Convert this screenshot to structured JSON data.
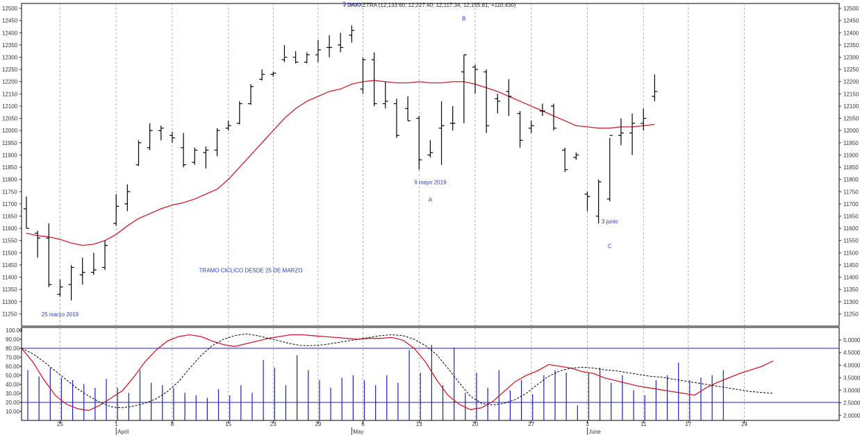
{
  "title": "I DAXXETRA (12,133.60, 12,227.40, 12,117.34, 12,155.81, +110.430)",
  "colors": {
    "bars": "#000000",
    "ma": "#d11a2a",
    "osc_fast": "#d11a2a",
    "osc_slow": "#000000",
    "volume": "#1d1db8",
    "ref_lines": "#1d1db8",
    "annotation": "#2a39c8",
    "grid": "#9a9a9a"
  },
  "chart_data": [
    {
      "type": "ohlc",
      "series_name": "I DAXXETRA",
      "ylim": [
        11200,
        12520
      ],
      "yticks": [
        12500,
        12450,
        12400,
        12350,
        12300,
        12250,
        12200,
        12150,
        12100,
        12050,
        12000,
        11950,
        11900,
        11850,
        11800,
        11750,
        11700,
        11650,
        11600,
        11550,
        11500,
        11450,
        11400,
        11350,
        11300,
        11250
      ],
      "x_tick_labels": [
        {
          "i": 3,
          "label": "25"
        },
        {
          "i": 8,
          "label": "1"
        },
        {
          "i": 13,
          "label": "8"
        },
        {
          "i": 18,
          "label": "15"
        },
        {
          "i": 22,
          "label": "23"
        },
        {
          "i": 26,
          "label": "29"
        },
        {
          "i": 30,
          "label": "6"
        },
        {
          "i": 35,
          "label": "13"
        },
        {
          "i": 40,
          "label": "20"
        },
        {
          "i": 45,
          "label": "27"
        },
        {
          "i": 50,
          "label": "3"
        },
        {
          "i": 55,
          "label": "11"
        },
        {
          "i": 59,
          "label": "17"
        },
        {
          "i": 64,
          "label": "24"
        }
      ],
      "month_labels": [
        {
          "i": 8,
          "label": "April"
        },
        {
          "i": 29,
          "label": "May"
        },
        {
          "i": 50,
          "label": "June"
        }
      ],
      "bars": [
        {
          "o": 11680,
          "h": 11730,
          "l": 11600,
          "c": 11600
        },
        {
          "o": 11580,
          "h": 11590,
          "l": 11480,
          "c": 11560
        },
        {
          "o": 11560,
          "h": 11620,
          "l": 11360,
          "c": 11370
        },
        {
          "o": 11330,
          "h": 11390,
          "l": 11320,
          "c": 11360
        },
        {
          "o": 11370,
          "h": 11450,
          "l": 11305,
          "c": 11440
        },
        {
          "o": 11410,
          "h": 11480,
          "l": 11370,
          "c": 11420
        },
        {
          "o": 11420,
          "h": 11500,
          "l": 11410,
          "c": 11430
        },
        {
          "o": 11440,
          "h": 11550,
          "l": 11430,
          "c": 11530
        },
        {
          "o": 11620,
          "h": 11740,
          "l": 11610,
          "c": 11690
        },
        {
          "o": 11700,
          "h": 11780,
          "l": 11670,
          "c": 11750
        },
        {
          "o": 11860,
          "h": 11960,
          "l": 11855,
          "c": 11950
        },
        {
          "o": 11930,
          "h": 12030,
          "l": 11920,
          "c": 12000
        },
        {
          "o": 12000,
          "h": 12020,
          "l": 11960,
          "c": 12010
        },
        {
          "o": 11980,
          "h": 11995,
          "l": 11950,
          "c": 11970
        },
        {
          "o": 11930,
          "h": 11990,
          "l": 11850,
          "c": 11860
        },
        {
          "o": 11870,
          "h": 11930,
          "l": 11860,
          "c": 11920
        },
        {
          "o": 11910,
          "h": 11935,
          "l": 11845,
          "c": 11920
        },
        {
          "o": 11920,
          "h": 12010,
          "l": 11895,
          "c": 12000
        },
        {
          "o": 12010,
          "h": 12040,
          "l": 12000,
          "c": 12020
        },
        {
          "o": 12030,
          "h": 12120,
          "l": 12025,
          "c": 12110
        },
        {
          "o": 12110,
          "h": 12190,
          "l": 12105,
          "c": 12180
        },
        {
          "o": 12210,
          "h": 12250,
          "l": 12205,
          "c": 12230
        },
        {
          "o": 12230,
          "h": 12240,
          "l": 12220,
          "c": 12235
        },
        {
          "o": 12290,
          "h": 12350,
          "l": 12280,
          "c": 12300
        },
        {
          "o": 12300,
          "h": 12325,
          "l": 12275,
          "c": 12280
        },
        {
          "o": 12280,
          "h": 12320,
          "l": 12275,
          "c": 12310
        },
        {
          "o": 12310,
          "h": 12370,
          "l": 12280,
          "c": 12330
        },
        {
          "o": 12340,
          "h": 12390,
          "l": 12300,
          "c": 12340
        },
        {
          "o": 12350,
          "h": 12400,
          "l": 12320,
          "c": 12340
        },
        {
          "o": 12390,
          "h": 12430,
          "l": 12360,
          "c": 12410
        },
        {
          "o": 12170,
          "h": 12300,
          "l": 12150,
          "c": 12290
        },
        {
          "o": 12290,
          "h": 12320,
          "l": 12100,
          "c": 12110
        },
        {
          "o": 12110,
          "h": 12200,
          "l": 12090,
          "c": 12120
        },
        {
          "o": 12110,
          "h": 12130,
          "l": 11970,
          "c": 11980
        },
        {
          "o": 12090,
          "h": 12140,
          "l": 12040,
          "c": 12040
        },
        {
          "o": 12050,
          "h": 12060,
          "l": 11840,
          "c": 11880
        },
        {
          "o": 11900,
          "h": 11960,
          "l": 11890,
          "c": 11910
        },
        {
          "o": 12010,
          "h": 12120,
          "l": 11860,
          "c": 12020
        },
        {
          "o": 12030,
          "h": 12100,
          "l": 12000,
          "c": 12030
        },
        {
          "o": 12240,
          "h": 12310,
          "l": 12030,
          "c": 12310
        },
        {
          "o": 12260,
          "h": 12270,
          "l": 12150,
          "c": 12250
        },
        {
          "o": 12240,
          "h": 12250,
          "l": 11990,
          "c": 12020
        },
        {
          "o": 12130,
          "h": 12150,
          "l": 12070,
          "c": 12120
        },
        {
          "o": 12160,
          "h": 12210,
          "l": 12060,
          "c": 12140
        },
        {
          "o": 12070,
          "h": 12080,
          "l": 11930,
          "c": 11960
        },
        {
          "o": 12010,
          "h": 12040,
          "l": 11990,
          "c": 12020
        },
        {
          "o": 12080,
          "h": 12110,
          "l": 12060,
          "c": 12080
        },
        {
          "o": 12100,
          "h": 12110,
          "l": 12000,
          "c": 12010
        },
        {
          "o": 11920,
          "h": 11930,
          "l": 11830,
          "c": 11840
        },
        {
          "o": 11890,
          "h": 11910,
          "l": 11880,
          "c": 11900
        },
        {
          "o": 11740,
          "h": 11750,
          "l": 11670,
          "c": 11730
        },
        {
          "o": 11650,
          "h": 11800,
          "l": 11620,
          "c": 11790
        },
        {
          "o": 11720,
          "h": 11970,
          "l": 11710,
          "c": 11980
        },
        {
          "o": 11980,
          "h": 12050,
          "l": 11940,
          "c": 11990
        },
        {
          "o": 11990,
          "h": 12070,
          "l": 11900,
          "c": 12030
        },
        {
          "o": 12030,
          "h": 12090,
          "l": 12000,
          "c": 12050
        },
        {
          "o": 12140,
          "h": 12230,
          "l": 12120,
          "c": 12160
        }
      ],
      "moving_average": [
        11580,
        11570,
        11565,
        11555,
        11540,
        11530,
        11535,
        11550,
        11575,
        11610,
        11640,
        11660,
        11680,
        11695,
        11705,
        11720,
        11740,
        11760,
        11800,
        11850,
        11900,
        11950,
        12000,
        12050,
        12090,
        12120,
        12140,
        12160,
        12170,
        12190,
        12200,
        12205,
        12200,
        12195,
        12195,
        12200,
        12195,
        12195,
        12200,
        12200,
        12190,
        12175,
        12160,
        12140,
        12120,
        12100,
        12080,
        12060,
        12040,
        12020,
        12015,
        12010,
        12010,
        12015,
        12015,
        12020,
        12025
      ],
      "annotations": [
        {
          "i": 29,
          "price": 12510,
          "text": "3 mayo"
        },
        {
          "i": 39,
          "price": 12450,
          "text": "B"
        },
        {
          "i": 36,
          "price": 11780,
          "text": "9 mayo 2019"
        },
        {
          "i": 36,
          "price": 11710,
          "text": "A"
        },
        {
          "i": 52,
          "price": 11620,
          "text": "3 junio"
        },
        {
          "i": 52,
          "price": 11520,
          "text": "C"
        },
        {
          "i": 3,
          "price": 11240,
          "text": "25 marzo 2019"
        },
        {
          "i": 20,
          "price": 11420,
          "text": "TRAMO CICLICO DESDE 25 DE MARZO"
        }
      ]
    },
    {
      "type": "oscillator_volume",
      "ylim_oscillator": [
        0,
        100
      ],
      "yticks_oscillator": [
        100,
        90,
        80,
        70,
        60,
        50,
        40,
        30,
        20,
        10
      ],
      "yticks_volume": [
        "5.0000",
        "4.5000",
        "4.0000",
        "3.5000",
        "3.0000",
        "2.5000",
        "2.0000"
      ],
      "ylim_volume": [
        1.8,
        5.5
      ],
      "ref_lines": [
        80,
        20
      ],
      "fast": [
        80,
        65,
        45,
        28,
        18,
        13,
        11,
        17,
        25,
        33,
        48,
        65,
        78,
        88,
        93,
        95,
        93,
        88,
        84,
        82,
        85,
        88,
        91,
        93,
        95,
        95,
        94,
        93,
        92,
        91,
        90,
        91,
        91,
        92,
        89,
        80,
        65,
        45,
        28,
        18,
        12,
        14,
        21,
        32,
        43,
        50,
        55,
        62,
        60,
        58,
        54,
        52,
        47,
        44,
        41,
        38,
        36,
        34,
        32,
        30,
        28,
        36,
        42,
        47,
        52,
        56,
        60,
        66
      ],
      "slow": [
        80,
        74,
        65,
        55,
        45,
        35,
        27,
        20,
        15,
        14,
        16,
        19,
        24,
        32,
        43,
        58,
        72,
        83,
        90,
        94,
        96,
        94,
        91,
        88,
        85,
        83,
        83,
        84,
        86,
        88,
        90,
        92,
        94,
        95,
        94,
        90,
        83,
        73,
        58,
        42,
        27,
        19,
        17,
        19,
        23,
        30,
        40,
        49,
        55,
        58,
        59,
        58,
        56,
        55,
        53,
        51,
        49,
        48,
        46,
        44,
        42,
        40,
        38,
        36,
        34,
        32,
        31,
        30
      ],
      "volume": [
        3.8,
        3.55,
        3.9,
        3.5,
        3.4,
        3.25,
        3.1,
        3.45,
        3.1,
        2.9,
        3.8,
        3.3,
        3.2,
        3.1,
        2.9,
        2.8,
        2.7,
        3.05,
        2.8,
        3.2,
        2.9,
        4.2,
        3.9,
        3.2,
        4.4,
        3.8,
        3.4,
        3.1,
        3.5,
        3.6,
        3.4,
        3.2,
        3.6,
        3.3,
        4.6,
        3.7,
        4.8,
        3.2,
        4.7,
        2.9,
        3.7,
        3.1,
        3.8,
        3.0,
        3.4,
        2.85,
        3.6,
        3.8,
        3.7,
        2.4,
        3.7,
        3.9,
        3.3,
        3.6,
        3.0,
        2.8,
        3.4,
        3.6,
        4.1,
        3.4,
        3.5,
        3.6,
        3.8
      ]
    }
  ]
}
